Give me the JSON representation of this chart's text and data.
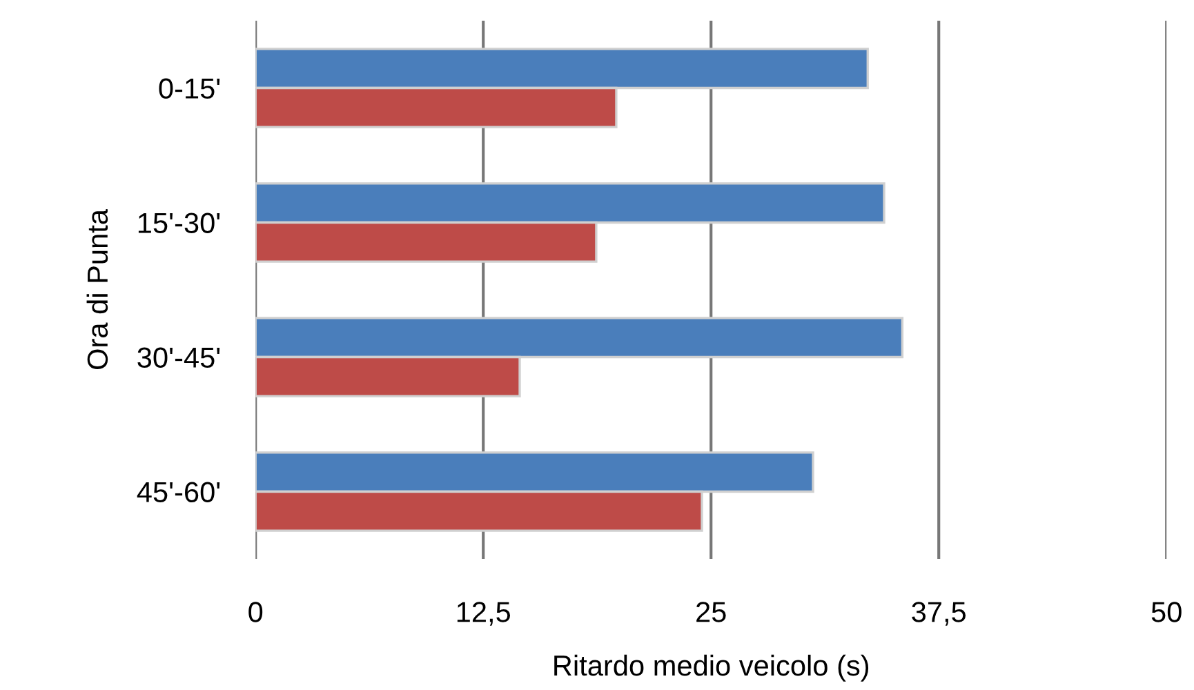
{
  "chart_data": {
    "type": "bar",
    "orientation": "horizontal",
    "xlabel": "Ritardo medio veicolo (s)",
    "ylabel": "Ora di Punta",
    "categories": [
      "0-15'",
      "15'-30'",
      "30'-45'",
      "45'-60'"
    ],
    "series": [
      {
        "color": "#4a7ebb",
        "values": [
          33.6,
          34.5,
          35.5,
          30.6
        ]
      },
      {
        "color": "#be4b48",
        "values": [
          19.8,
          18.7,
          14.5,
          24.5
        ]
      }
    ],
    "xlim": [
      0,
      50
    ],
    "xticks": [
      0,
      {
        "value": 12.5,
        "label": "12,5"
      },
      25,
      {
        "value": 37.5,
        "label": "37,5"
      },
      50
    ],
    "grid": "x",
    "legend": false
  }
}
